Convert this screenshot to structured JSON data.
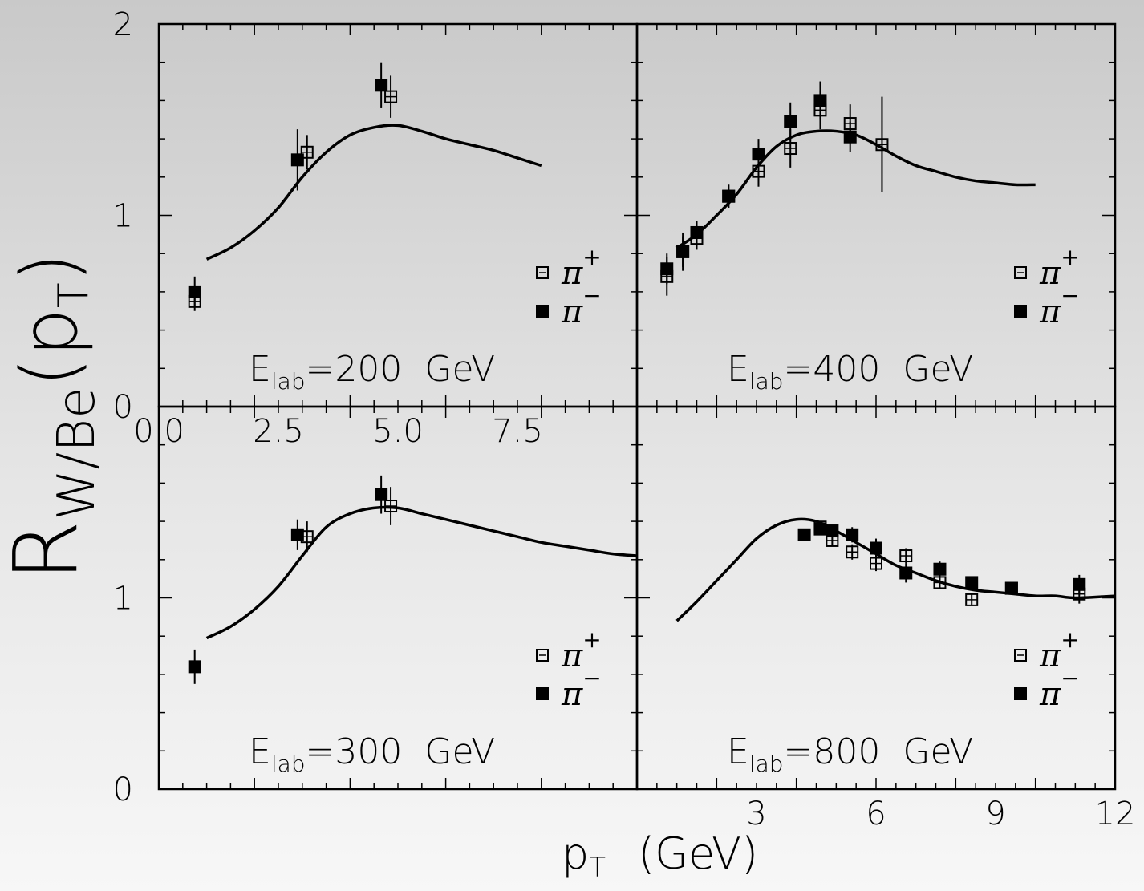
{
  "chart_data": {
    "type": "scatter",
    "ylabel_main": "R",
    "ylabel_sub": "W/Be",
    "ylabel_paren": "(p",
    "ylabel_paren_sub": "T",
    "ylabel_close": ")",
    "xlabel_main": "p",
    "xlabel_sub": "T",
    "xlabel_units": "(GeV)",
    "legend": {
      "plus": "π",
      "plus_sup": "+",
      "minus": "π",
      "minus_sup": "−"
    },
    "panels": [
      {
        "id": "p200",
        "label_prefix": "E",
        "label_sub": "lab",
        "label_value": "=200  GeV",
        "xlim": [
          0,
          10
        ],
        "ylim": [
          0,
          2
        ],
        "xticks_labels": [
          "0.0",
          "2.5",
          "5.0",
          "7.5"
        ],
        "xticks_values": [
          0,
          2.5,
          5.0,
          7.5
        ],
        "yticks_labels": [
          "0",
          "1",
          "2"
        ],
        "yticks_values": [
          0,
          1,
          2
        ],
        "series": [
          {
            "name": "π+",
            "points": [
              {
                "x": 0.75,
                "y": 0.55,
                "err": 0.05
              },
              {
                "x": 3.1,
                "y": 1.33,
                "err": 0.09
              },
              {
                "x": 4.85,
                "y": 1.62,
                "err": 0.11
              }
            ]
          },
          {
            "name": "π−",
            "points": [
              {
                "x": 0.75,
                "y": 0.6,
                "err": 0.08
              },
              {
                "x": 2.9,
                "y": 1.29,
                "err": 0.16
              },
              {
                "x": 4.65,
                "y": 1.68,
                "err": 0.12
              }
            ]
          }
        ],
        "curve": [
          [
            1.0,
            0.77
          ],
          [
            1.5,
            0.83
          ],
          [
            2.0,
            0.92
          ],
          [
            2.5,
            1.04
          ],
          [
            3.0,
            1.2
          ],
          [
            3.5,
            1.33
          ],
          [
            4.0,
            1.42
          ],
          [
            4.5,
            1.46
          ],
          [
            5.0,
            1.47
          ],
          [
            5.5,
            1.44
          ],
          [
            6.0,
            1.4
          ],
          [
            6.5,
            1.37
          ],
          [
            7.0,
            1.34
          ],
          [
            7.5,
            1.3
          ],
          [
            8.0,
            1.26
          ]
        ]
      },
      {
        "id": "p400",
        "label_prefix": "E",
        "label_sub": "lab",
        "label_value": "=400  GeV",
        "xlim": [
          0,
          12
        ],
        "ylim": [
          0,
          2
        ],
        "xticks_labels": [],
        "xticks_values": [],
        "yticks_labels": [],
        "yticks_values": [],
        "series": [
          {
            "name": "π+",
            "points": [
              {
                "x": 0.75,
                "y": 0.68,
                "err": 0.1
              },
              {
                "x": 1.15,
                "y": 0.81,
                "err": 0.08
              },
              {
                "x": 1.5,
                "y": 0.88,
                "err": 0.06
              },
              {
                "x": 2.3,
                "y": 1.1,
                "err": 0.06
              },
              {
                "x": 3.05,
                "y": 1.23,
                "err": 0.08
              },
              {
                "x": 3.85,
                "y": 1.35,
                "err": 0.1
              },
              {
                "x": 4.6,
                "y": 1.55,
                "err": 0.1
              },
              {
                "x": 5.35,
                "y": 1.48,
                "err": 0.1
              },
              {
                "x": 6.15,
                "y": 1.37,
                "err": 0.25
              }
            ]
          },
          {
            "name": "π−",
            "points": [
              {
                "x": 0.75,
                "y": 0.72,
                "err": 0.08
              },
              {
                "x": 1.15,
                "y": 0.81,
                "err": 0.1
              },
              {
                "x": 1.5,
                "y": 0.91,
                "err": 0.06
              },
              {
                "x": 2.3,
                "y": 1.1,
                "err": 0.06
              },
              {
                "x": 3.05,
                "y": 1.32,
                "err": 0.08
              },
              {
                "x": 3.85,
                "y": 1.49,
                "err": 0.1
              },
              {
                "x": 4.6,
                "y": 1.6,
                "err": 0.1
              },
              {
                "x": 5.35,
                "y": 1.41,
                "err": 0.08
              }
            ]
          }
        ],
        "curve": [
          [
            1.0,
            0.83
          ],
          [
            1.5,
            0.9
          ],
          [
            2.0,
            1.0
          ],
          [
            2.5,
            1.11
          ],
          [
            3.0,
            1.25
          ],
          [
            3.5,
            1.36
          ],
          [
            4.0,
            1.42
          ],
          [
            4.5,
            1.44
          ],
          [
            5.0,
            1.44
          ],
          [
            5.5,
            1.42
          ],
          [
            6.0,
            1.37
          ],
          [
            6.5,
            1.31
          ],
          [
            7.0,
            1.26
          ],
          [
            7.5,
            1.23
          ],
          [
            8.0,
            1.2
          ],
          [
            8.5,
            1.18
          ],
          [
            9.0,
            1.17
          ],
          [
            9.5,
            1.16
          ],
          [
            10.0,
            1.16
          ]
        ]
      },
      {
        "id": "p300",
        "label_prefix": "E",
        "label_sub": "lab",
        "label_value": "=300  GeV",
        "xlim": [
          0,
          10
        ],
        "ylim": [
          0,
          2
        ],
        "xticks_labels": [],
        "xticks_values": [],
        "yticks_labels": [
          "0",
          "1"
        ],
        "yticks_values": [
          0,
          1
        ],
        "series": [
          {
            "name": "π+",
            "points": [
              {
                "x": 3.1,
                "y": 1.32,
                "err": 0.08
              },
              {
                "x": 4.85,
                "y": 1.48,
                "err": 0.1
              }
            ]
          },
          {
            "name": "π−",
            "points": [
              {
                "x": 0.75,
                "y": 0.64,
                "err": 0.09
              },
              {
                "x": 2.9,
                "y": 1.33,
                "err": 0.08
              },
              {
                "x": 4.65,
                "y": 1.54,
                "err": 0.1
              }
            ]
          }
        ],
        "curve": [
          [
            1.0,
            0.79
          ],
          [
            1.5,
            0.85
          ],
          [
            2.0,
            0.94
          ],
          [
            2.5,
            1.06
          ],
          [
            3.0,
            1.22
          ],
          [
            3.5,
            1.37
          ],
          [
            4.0,
            1.44
          ],
          [
            4.5,
            1.47
          ],
          [
            5.0,
            1.47
          ],
          [
            5.5,
            1.44
          ],
          [
            6.0,
            1.41
          ],
          [
            6.5,
            1.38
          ],
          [
            7.0,
            1.35
          ],
          [
            7.5,
            1.32
          ],
          [
            8.0,
            1.29
          ],
          [
            8.5,
            1.27
          ],
          [
            9.0,
            1.25
          ],
          [
            9.5,
            1.23
          ],
          [
            10.0,
            1.22
          ]
        ]
      },
      {
        "id": "p800",
        "label_prefix": "E",
        "label_sub": "lab",
        "label_value": "=800  GeV",
        "xlim": [
          0,
          12
        ],
        "ylim": [
          0,
          2
        ],
        "xticks_labels": [
          "3",
          "6",
          "9",
          "12"
        ],
        "xticks_values": [
          3,
          6,
          9,
          12
        ],
        "yticks_labels": [],
        "yticks_values": [],
        "series": [
          {
            "name": "π+",
            "points": [
              {
                "x": 4.6,
                "y": 1.37,
                "err": 0.03
              },
              {
                "x": 4.9,
                "y": 1.3,
                "err": 0.03
              },
              {
                "x": 5.4,
                "y": 1.24,
                "err": 0.04
              },
              {
                "x": 6.0,
                "y": 1.18,
                "err": 0.04
              },
              {
                "x": 6.75,
                "y": 1.22,
                "err": 0.04
              },
              {
                "x": 7.6,
                "y": 1.08,
                "err": 0.03
              },
              {
                "x": 8.4,
                "y": 0.99,
                "err": 0.03
              },
              {
                "x": 9.4,
                "y": 1.05,
                "err": 0.03
              },
              {
                "x": 11.1,
                "y": 1.02,
                "err": 0.05
              }
            ]
          },
          {
            "name": "π−",
            "points": [
              {
                "x": 4.2,
                "y": 1.33,
                "err": 0.02
              },
              {
                "x": 4.6,
                "y": 1.36,
                "err": 0.03
              },
              {
                "x": 4.9,
                "y": 1.35,
                "err": 0.03
              },
              {
                "x": 5.4,
                "y": 1.33,
                "err": 0.04
              },
              {
                "x": 6.0,
                "y": 1.26,
                "err": 0.05
              },
              {
                "x": 6.75,
                "y": 1.13,
                "err": 0.05
              },
              {
                "x": 7.6,
                "y": 1.15,
                "err": 0.04
              },
              {
                "x": 8.4,
                "y": 1.08,
                "err": 0.03
              },
              {
                "x": 9.4,
                "y": 1.05,
                "err": 0.03
              },
              {
                "x": 11.1,
                "y": 1.07,
                "err": 0.05
              }
            ]
          }
        ],
        "curve": [
          [
            1.0,
            0.88
          ],
          [
            1.5,
            0.98
          ],
          [
            2.0,
            1.09
          ],
          [
            2.5,
            1.2
          ],
          [
            3.0,
            1.31
          ],
          [
            3.5,
            1.38
          ],
          [
            4.0,
            1.41
          ],
          [
            4.5,
            1.4
          ],
          [
            5.0,
            1.35
          ],
          [
            5.5,
            1.29
          ],
          [
            6.0,
            1.23
          ],
          [
            6.5,
            1.17
          ],
          [
            7.0,
            1.13
          ],
          [
            7.5,
            1.09
          ],
          [
            8.0,
            1.06
          ],
          [
            8.5,
            1.04
          ],
          [
            9.0,
            1.03
          ],
          [
            9.5,
            1.02
          ],
          [
            10.0,
            1.01
          ],
          [
            10.5,
            1.01
          ],
          [
            11.0,
            1.0
          ],
          [
            12.0,
            1.01
          ]
        ]
      }
    ]
  }
}
